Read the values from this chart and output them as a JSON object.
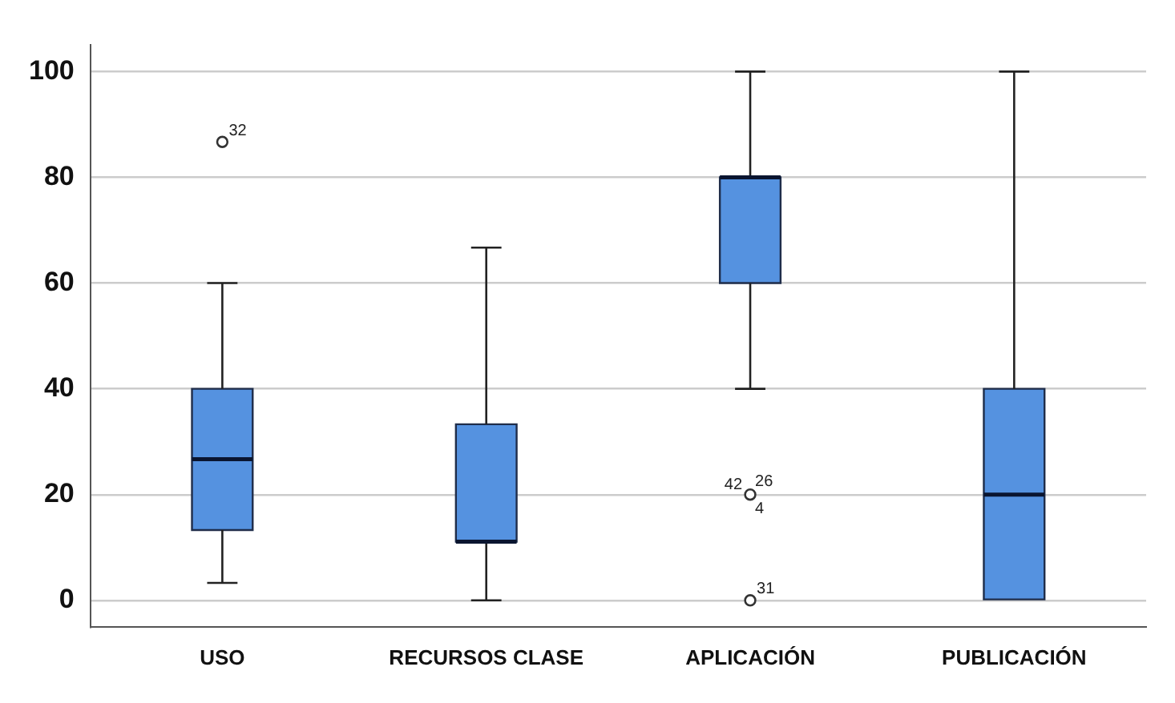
{
  "chart_data": {
    "type": "box",
    "categories": [
      "USO",
      "RECURSOS CLASE",
      "APLICACIÓN",
      "PUBLICACIÓN"
    ],
    "color": "#5592e0",
    "boxes": [
      {
        "low": 3.3,
        "q1": 13.3,
        "median": 26.7,
        "q3": 40,
        "high": 60,
        "outliers": [
          86.7
        ]
      },
      {
        "low": 0,
        "q1": 11.1,
        "median": 11.1,
        "q3": 33.3,
        "high": 66.7
      },
      {
        "low": 40,
        "q1": 60,
        "median": 80,
        "q3": 80,
        "high": 100,
        "outliers": [
          20,
          0
        ]
      },
      {
        "low": 0,
        "q1": 0,
        "median": 20,
        "q3": 40,
        "high": 100
      }
    ],
    "ylim": [
      -5,
      105
    ],
    "yticks": [
      0,
      20,
      40,
      60,
      80,
      100
    ],
    "grid": "y",
    "annotations": [
      "32",
      "42",
      "26",
      "4",
      "31"
    ]
  }
}
